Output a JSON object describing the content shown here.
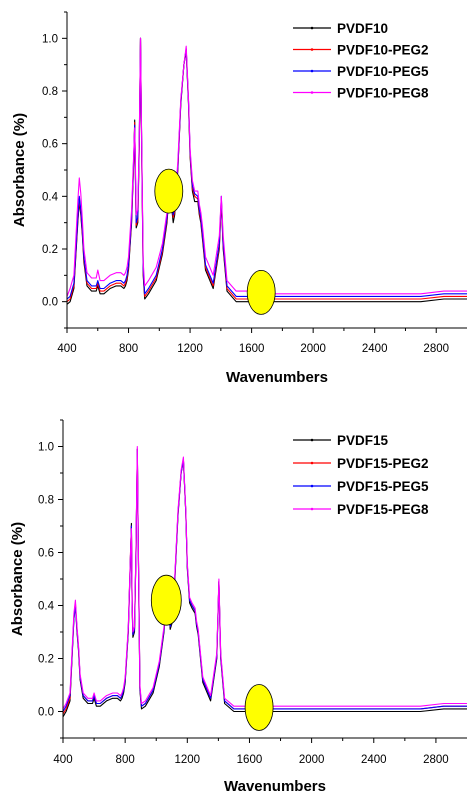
{
  "chart_data": [
    {
      "type": "line",
      "title": "",
      "xlabel": "Wavenumbers",
      "ylabel": "Absorbance (%)",
      "xlim": [
        400,
        3000
      ],
      "ylim": [
        -0.1,
        1.1
      ],
      "x_ticks": [
        400,
        800,
        1200,
        1600,
        2000,
        2400,
        2800
      ],
      "y_ticks": [
        0.0,
        0.2,
        0.4,
        0.6,
        0.8,
        1.0
      ],
      "x_tick_labels": [
        "400",
        "800",
        "1200",
        "1600",
        "2000",
        "2400",
        "2800"
      ],
      "y_tick_labels": [
        "0.0",
        "0.2",
        "0.4",
        "0.6",
        "0.8",
        "1.0"
      ],
      "legend_position": "top-right",
      "grid": false,
      "x": [
        400,
        420,
        445,
        470,
        480,
        490,
        500,
        510,
        530,
        560,
        590,
        600,
        615,
        640,
        680,
        720,
        750,
        770,
        780,
        790,
        800,
        820,
        835,
        840,
        845,
        850,
        860,
        870,
        878,
        885,
        895,
        905,
        930,
        980,
        1020,
        1050,
        1060,
        1070,
        1080,
        1090,
        1100,
        1120,
        1140,
        1160,
        1175,
        1190,
        1200,
        1215,
        1230,
        1250,
        1260,
        1270,
        1280,
        1300,
        1350,
        1390,
        1403,
        1415,
        1440,
        1500,
        1600,
        1650,
        1680,
        1700,
        1750,
        1900,
        2400,
        2700,
        2850,
        2900,
        3000
      ],
      "series": [
        {
          "name": "PVDF10",
          "color": "#000000",
          "values": [
            -0.01,
            0.0,
            0.05,
            0.3,
            0.38,
            0.33,
            0.25,
            0.15,
            0.06,
            0.04,
            0.04,
            0.06,
            0.03,
            0.03,
            0.05,
            0.06,
            0.06,
            0.05,
            0.06,
            0.08,
            0.12,
            0.3,
            0.55,
            0.69,
            0.45,
            0.28,
            0.3,
            0.6,
            1.0,
            0.6,
            0.1,
            0.01,
            0.03,
            0.08,
            0.18,
            0.3,
            0.38,
            0.44,
            0.36,
            0.3,
            0.33,
            0.5,
            0.75,
            0.9,
            0.95,
            0.75,
            0.55,
            0.42,
            0.38,
            0.38,
            0.33,
            0.3,
            0.24,
            0.12,
            0.05,
            0.2,
            0.38,
            0.2,
            0.04,
            0.0,
            0.0,
            0.02,
            0.01,
            0.0,
            0.0,
            0.0,
            0.0,
            0.0,
            0.01,
            0.01,
            0.01
          ]
        },
        {
          "name": "PVDF10-PEG2",
          "color": "#ff0000",
          "values": [
            0.0,
            0.01,
            0.06,
            0.31,
            0.39,
            0.34,
            0.26,
            0.16,
            0.07,
            0.05,
            0.05,
            0.07,
            0.04,
            0.04,
            0.06,
            0.07,
            0.07,
            0.06,
            0.07,
            0.09,
            0.13,
            0.31,
            0.56,
            0.68,
            0.46,
            0.29,
            0.31,
            0.61,
            1.0,
            0.61,
            0.11,
            0.02,
            0.04,
            0.09,
            0.19,
            0.31,
            0.38,
            0.42,
            0.37,
            0.32,
            0.34,
            0.5,
            0.76,
            0.9,
            0.96,
            0.76,
            0.56,
            0.43,
            0.4,
            0.39,
            0.34,
            0.31,
            0.25,
            0.13,
            0.06,
            0.21,
            0.39,
            0.21,
            0.05,
            0.01,
            0.01,
            0.03,
            0.02,
            0.01,
            0.01,
            0.01,
            0.01,
            0.01,
            0.02,
            0.02,
            0.02
          ]
        },
        {
          "name": "PVDF10-PEG5",
          "color": "#0000ff",
          "values": [
            0.01,
            0.02,
            0.07,
            0.32,
            0.4,
            0.35,
            0.27,
            0.17,
            0.08,
            0.06,
            0.06,
            0.08,
            0.05,
            0.05,
            0.07,
            0.08,
            0.08,
            0.07,
            0.08,
            0.1,
            0.14,
            0.32,
            0.57,
            0.67,
            0.47,
            0.3,
            0.32,
            0.62,
            1.0,
            0.62,
            0.12,
            0.03,
            0.05,
            0.1,
            0.2,
            0.32,
            0.39,
            0.43,
            0.38,
            0.33,
            0.35,
            0.51,
            0.76,
            0.9,
            0.96,
            0.76,
            0.57,
            0.44,
            0.41,
            0.4,
            0.35,
            0.32,
            0.26,
            0.14,
            0.07,
            0.22,
            0.4,
            0.22,
            0.06,
            0.02,
            0.02,
            0.03,
            0.03,
            0.02,
            0.02,
            0.02,
            0.02,
            0.02,
            0.03,
            0.03,
            0.03
          ]
        },
        {
          "name": "PVDF10-PEG8",
          "color": "#ff00ff",
          "values": [
            0.02,
            0.05,
            0.1,
            0.38,
            0.47,
            0.41,
            0.31,
            0.2,
            0.11,
            0.09,
            0.09,
            0.12,
            0.08,
            0.08,
            0.1,
            0.11,
            0.11,
            0.1,
            0.11,
            0.13,
            0.17,
            0.35,
            0.58,
            0.66,
            0.5,
            0.33,
            0.35,
            0.63,
            1.0,
            0.63,
            0.15,
            0.06,
            0.08,
            0.13,
            0.22,
            0.34,
            0.4,
            0.46,
            0.39,
            0.35,
            0.37,
            0.53,
            0.77,
            0.9,
            0.97,
            0.77,
            0.58,
            0.46,
            0.42,
            0.42,
            0.37,
            0.34,
            0.29,
            0.17,
            0.1,
            0.25,
            0.4,
            0.25,
            0.08,
            0.04,
            0.04,
            0.04,
            0.04,
            0.03,
            0.03,
            0.03,
            0.03,
            0.03,
            0.04,
            0.04,
            0.04
          ]
        }
      ]
    },
    {
      "type": "line",
      "title": "",
      "xlabel": "Wavenumbers",
      "ylabel": "Absorbance (%)",
      "xlim": [
        400,
        3000
      ],
      "ylim": [
        -0.1,
        1.1
      ],
      "x_ticks": [
        400,
        800,
        1200,
        1600,
        2000,
        2400,
        2800
      ],
      "y_ticks": [
        0.0,
        0.2,
        0.4,
        0.6,
        0.8,
        1.0
      ],
      "x_tick_labels": [
        "400",
        "800",
        "1200",
        "1600",
        "2000",
        "2400",
        "2800"
      ],
      "y_tick_labels": [
        "0.0",
        "0.2",
        "0.4",
        "0.6",
        "0.8",
        "1.0"
      ],
      "legend_position": "top-right",
      "grid": false,
      "x": [
        400,
        420,
        445,
        470,
        480,
        490,
        500,
        510,
        530,
        560,
        590,
        600,
        615,
        640,
        680,
        720,
        750,
        770,
        780,
        790,
        800,
        820,
        835,
        840,
        845,
        850,
        860,
        870,
        878,
        885,
        895,
        905,
        930,
        980,
        1020,
        1050,
        1060,
        1070,
        1080,
        1090,
        1100,
        1120,
        1140,
        1160,
        1175,
        1190,
        1200,
        1215,
        1230,
        1250,
        1260,
        1270,
        1280,
        1300,
        1350,
        1390,
        1403,
        1415,
        1440,
        1500,
        1600,
        1650,
        1680,
        1700,
        1750,
        1900,
        2400,
        2700,
        2850,
        2900,
        3000
      ],
      "series": [
        {
          "name": "PVDF15",
          "color": "#000000",
          "values": [
            -0.02,
            0.0,
            0.04,
            0.35,
            0.4,
            0.3,
            0.23,
            0.12,
            0.05,
            0.03,
            0.03,
            0.05,
            0.02,
            0.02,
            0.04,
            0.05,
            0.05,
            0.04,
            0.05,
            0.07,
            0.11,
            0.3,
            0.6,
            0.71,
            0.4,
            0.28,
            0.3,
            0.6,
            0.99,
            0.58,
            0.08,
            0.01,
            0.02,
            0.07,
            0.17,
            0.3,
            0.4,
            0.47,
            0.38,
            0.31,
            0.33,
            0.5,
            0.74,
            0.9,
            0.95,
            0.75,
            0.54,
            0.41,
            0.39,
            0.37,
            0.32,
            0.29,
            0.23,
            0.11,
            0.04,
            0.2,
            0.49,
            0.2,
            0.03,
            0.0,
            0.0,
            0.01,
            0.01,
            0.0,
            0.0,
            0.0,
            0.0,
            0.0,
            0.01,
            0.01,
            0.01
          ]
        },
        {
          "name": "PVDF15-PEG2",
          "color": "#ff0000",
          "values": [
            -0.01,
            0.01,
            0.05,
            0.36,
            0.41,
            0.31,
            0.24,
            0.13,
            0.06,
            0.04,
            0.04,
            0.06,
            0.03,
            0.03,
            0.05,
            0.06,
            0.06,
            0.05,
            0.06,
            0.08,
            0.12,
            0.31,
            0.61,
            0.7,
            0.41,
            0.29,
            0.31,
            0.61,
            0.99,
            0.59,
            0.09,
            0.02,
            0.03,
            0.08,
            0.18,
            0.31,
            0.41,
            0.48,
            0.39,
            0.32,
            0.34,
            0.51,
            0.75,
            0.9,
            0.95,
            0.75,
            0.55,
            0.42,
            0.4,
            0.38,
            0.33,
            0.3,
            0.24,
            0.12,
            0.05,
            0.21,
            0.49,
            0.21,
            0.04,
            0.01,
            0.01,
            0.02,
            0.02,
            0.01,
            0.01,
            0.01,
            0.01,
            0.01,
            0.02,
            0.02,
            0.02
          ]
        },
        {
          "name": "PVDF15-PEG5",
          "color": "#0000ff",
          "values": [
            0.0,
            0.02,
            0.06,
            0.35,
            0.4,
            0.31,
            0.24,
            0.13,
            0.06,
            0.04,
            0.04,
            0.06,
            0.03,
            0.03,
            0.05,
            0.06,
            0.06,
            0.05,
            0.06,
            0.08,
            0.12,
            0.31,
            0.6,
            0.7,
            0.41,
            0.29,
            0.31,
            0.61,
            0.99,
            0.59,
            0.09,
            0.02,
            0.03,
            0.08,
            0.18,
            0.31,
            0.41,
            0.47,
            0.39,
            0.32,
            0.34,
            0.51,
            0.75,
            0.9,
            0.95,
            0.75,
            0.55,
            0.42,
            0.4,
            0.38,
            0.33,
            0.3,
            0.24,
            0.12,
            0.05,
            0.21,
            0.49,
            0.21,
            0.04,
            0.01,
            0.01,
            0.02,
            0.02,
            0.01,
            0.01,
            0.01,
            0.01,
            0.01,
            0.02,
            0.02,
            0.02
          ]
        },
        {
          "name": "PVDF15-PEG8",
          "color": "#ff00ff",
          "values": [
            0.01,
            0.03,
            0.07,
            0.37,
            0.42,
            0.32,
            0.25,
            0.14,
            0.07,
            0.05,
            0.05,
            0.07,
            0.04,
            0.04,
            0.06,
            0.07,
            0.07,
            0.06,
            0.07,
            0.09,
            0.13,
            0.32,
            0.61,
            0.69,
            0.42,
            0.3,
            0.32,
            0.62,
            1.0,
            0.6,
            0.1,
            0.03,
            0.04,
            0.09,
            0.19,
            0.32,
            0.42,
            0.48,
            0.4,
            0.33,
            0.35,
            0.52,
            0.76,
            0.91,
            0.96,
            0.76,
            0.56,
            0.43,
            0.41,
            0.39,
            0.34,
            0.31,
            0.25,
            0.13,
            0.06,
            0.22,
            0.5,
            0.22,
            0.05,
            0.02,
            0.02,
            0.03,
            0.03,
            0.02,
            0.02,
            0.02,
            0.02,
            0.02,
            0.03,
            0.03,
            0.03
          ]
        }
      ]
    }
  ]
}
